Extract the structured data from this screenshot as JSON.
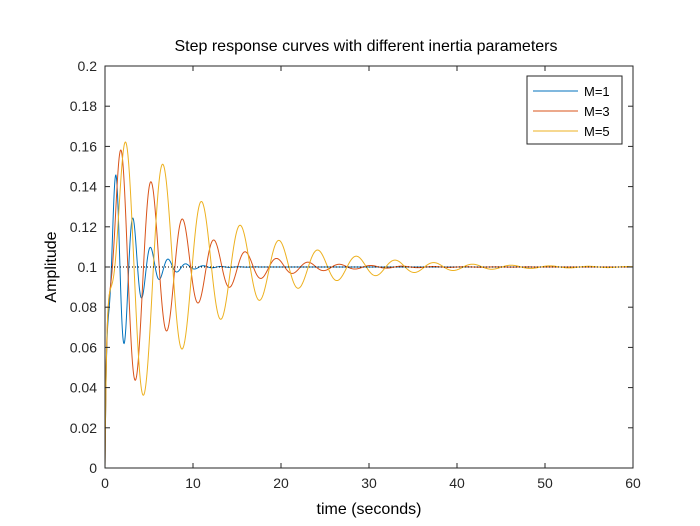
{
  "chart_data": {
    "type": "line",
    "title": "Step response curves with different inertia parameters",
    "xlabel": "time (seconds)",
    "ylabel": "Amplitude",
    "xlim": [
      0,
      60
    ],
    "ylim": [
      0,
      0.2
    ],
    "xticks": [
      0,
      10,
      20,
      30,
      40,
      50,
      60
    ],
    "yticks": [
      0,
      0.02,
      0.04,
      0.06,
      0.08,
      0.1,
      0.12,
      0.14,
      0.16,
      0.18,
      0.2
    ],
    "grid": false,
    "legend_position": "top-right",
    "reference_line": {
      "y": 0.1,
      "style": "dotted"
    },
    "series": [
      {
        "name": "M=1",
        "color": "#0072BD",
        "final_value": 0.1,
        "peaks": [
          [
            1.2,
            0.16
          ],
          [
            2.3,
            0.064
          ],
          [
            3.4,
            0.122
          ],
          [
            4.2,
            0.087
          ],
          [
            5.1,
            0.108
          ],
          [
            6.2,
            0.095
          ],
          [
            7.2,
            0.102
          ]
        ],
        "settling_time": 12
      },
      {
        "name": "M=3",
        "color": "#D95319",
        "final_value": 0.1,
        "peaks": [
          [
            1.7,
            0.175
          ],
          [
            3.6,
            0.044
          ],
          [
            5.3,
            0.142
          ],
          [
            7.1,
            0.064
          ],
          [
            8.9,
            0.123
          ],
          [
            10.6,
            0.077
          ],
          [
            12.4,
            0.113
          ]
        ],
        "settling_time": 35
      },
      {
        "name": "M=5",
        "color": "#EDB120",
        "final_value": 0.1,
        "peaks": [
          [
            2.2,
            0.18
          ],
          [
            4.4,
            0.036
          ],
          [
            6.6,
            0.151
          ],
          [
            8.8,
            0.059
          ],
          [
            11.0,
            0.133
          ],
          [
            13.2,
            0.073
          ],
          [
            15.4,
            0.121
          ]
        ],
        "settling_time": 55
      }
    ]
  }
}
